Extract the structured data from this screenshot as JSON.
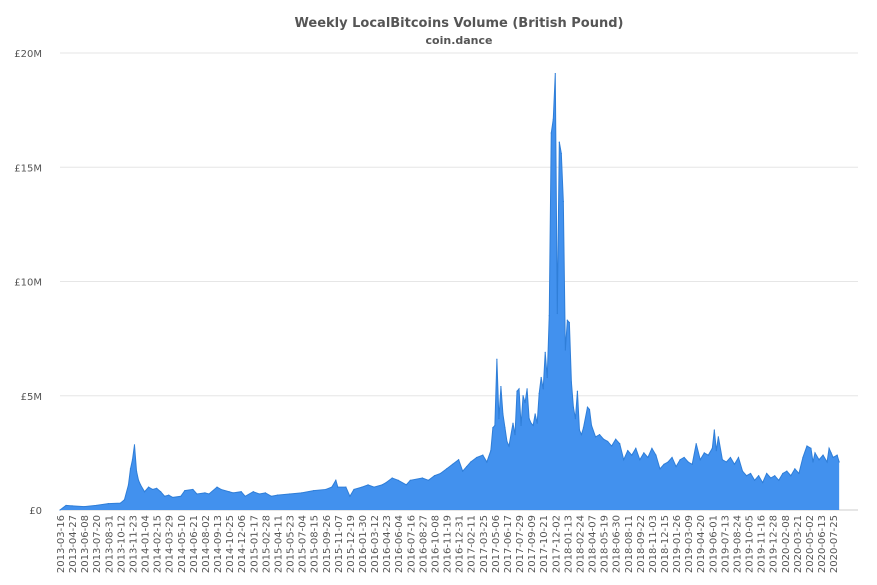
{
  "chart_data": {
    "type": "area",
    "title": "Weekly LocalBitcoins Volume (British Pound)",
    "subtitle": "coin.dance",
    "xlabel": "",
    "ylabel": "",
    "ylim": [
      0,
      20000000
    ],
    "yticks": [
      {
        "value": 0,
        "label": "£0"
      },
      {
        "value": 5000000,
        "label": "£5M"
      },
      {
        "value": 10000000,
        "label": "£10M"
      },
      {
        "value": 15000000,
        "label": "£15M"
      },
      {
        "value": 20000000,
        "label": "£20M"
      }
    ],
    "xticks": [
      "2013-03-16",
      "2013-04-27",
      "2013-06-08",
      "2013-07-20",
      "2013-08-31",
      "2013-10-12",
      "2013-11-23",
      "2014-01-04",
      "2014-02-15",
      "2014-03-29",
      "2014-05-10",
      "2014-06-21",
      "2014-08-02",
      "2014-09-13",
      "2014-10-25",
      "2014-12-06",
      "2015-01-17",
      "2015-02-28",
      "2015-04-11",
      "2015-05-23",
      "2015-07-04",
      "2015-08-15",
      "2015-09-26",
      "2015-11-07",
      "2015-12-19",
      "2016-01-30",
      "2016-03-12",
      "2016-04-23",
      "2016-06-04",
      "2016-07-16",
      "2016-08-27",
      "2016-10-08",
      "2016-11-19",
      "2016-12-31",
      "2017-02-11",
      "2017-03-25",
      "2017-05-06",
      "2017-06-17",
      "2017-07-29",
      "2017-09-09",
      "2017-10-21",
      "2017-12-02",
      "2018-01-13",
      "2018-02-24",
      "2018-04-07",
      "2018-05-19",
      "2018-06-30",
      "2018-08-11",
      "2018-09-22",
      "2018-11-03",
      "2018-12-15",
      "2019-01-26",
      "2019-03-09",
      "2019-04-20",
      "2019-06-01",
      "2019-07-13",
      "2019-08-24",
      "2019-10-05",
      "2019-11-16",
      "2019-12-28",
      "2020-02-08",
      "2020-03-21",
      "2020-05-02",
      "2020-06-13",
      "2020-07-25"
    ],
    "grid": true,
    "color": "#4291ee",
    "line_color": "#2f7ed8",
    "series": [
      {
        "points": [
          [
            "2013-03-16",
            0
          ],
          [
            "2013-04-06",
            200000
          ],
          [
            "2013-04-27",
            180000
          ],
          [
            "2013-06-08",
            150000
          ],
          [
            "2013-07-20",
            200000
          ],
          [
            "2013-08-31",
            280000
          ],
          [
            "2013-10-12",
            300000
          ],
          [
            "2013-10-26",
            450000
          ],
          [
            "2013-11-09",
            1100000
          ],
          [
            "2013-11-16",
            1800000
          ],
          [
            "2013-11-23",
            2200000
          ],
          [
            "2013-11-30",
            2850000
          ],
          [
            "2013-12-07",
            1700000
          ],
          [
            "2013-12-14",
            1300000
          ],
          [
            "2013-12-21",
            1100000
          ],
          [
            "2014-01-04",
            800000
          ],
          [
            "2014-01-18",
            1000000
          ],
          [
            "2014-02-01",
            900000
          ],
          [
            "2014-02-15",
            950000
          ],
          [
            "2014-03-01",
            800000
          ],
          [
            "2014-03-15",
            600000
          ],
          [
            "2014-03-29",
            650000
          ],
          [
            "2014-04-12",
            550000
          ],
          [
            "2014-05-10",
            600000
          ],
          [
            "2014-05-24",
            850000
          ],
          [
            "2014-06-21",
            900000
          ],
          [
            "2014-07-05",
            700000
          ],
          [
            "2014-08-02",
            750000
          ],
          [
            "2014-08-16",
            700000
          ],
          [
            "2014-09-13",
            1000000
          ],
          [
            "2014-09-27",
            900000
          ],
          [
            "2014-10-25",
            800000
          ],
          [
            "2014-11-08",
            750000
          ],
          [
            "2014-12-06",
            800000
          ],
          [
            "2014-12-20",
            600000
          ],
          [
            "2015-01-17",
            800000
          ],
          [
            "2015-02-07",
            700000
          ],
          [
            "2015-02-28",
            750000
          ],
          [
            "2015-03-21",
            600000
          ],
          [
            "2015-04-11",
            650000
          ],
          [
            "2015-05-23",
            700000
          ],
          [
            "2015-07-04",
            750000
          ],
          [
            "2015-08-15",
            850000
          ],
          [
            "2015-09-26",
            900000
          ],
          [
            "2015-10-17",
            1000000
          ],
          [
            "2015-10-31",
            1300000
          ],
          [
            "2015-11-07",
            1000000
          ],
          [
            "2015-12-05",
            1000000
          ],
          [
            "2015-12-19",
            600000
          ],
          [
            "2016-01-02",
            900000
          ],
          [
            "2016-01-30",
            1000000
          ],
          [
            "2016-02-20",
            1100000
          ],
          [
            "2016-03-12",
            1000000
          ],
          [
            "2016-04-09",
            1100000
          ],
          [
            "2016-04-23",
            1200000
          ],
          [
            "2016-05-14",
            1400000
          ],
          [
            "2016-06-04",
            1300000
          ],
          [
            "2016-07-02",
            1100000
          ],
          [
            "2016-07-16",
            1300000
          ],
          [
            "2016-08-27",
            1400000
          ],
          [
            "2016-09-17",
            1300000
          ],
          [
            "2016-10-08",
            1500000
          ],
          [
            "2016-10-29",
            1600000
          ],
          [
            "2016-11-19",
            1800000
          ],
          [
            "2016-12-10",
            2000000
          ],
          [
            "2016-12-31",
            2200000
          ],
          [
            "2017-01-14",
            1700000
          ],
          [
            "2017-01-28",
            1900000
          ],
          [
            "2017-02-11",
            2100000
          ],
          [
            "2017-03-04",
            2300000
          ],
          [
            "2017-03-25",
            2400000
          ],
          [
            "2017-04-08",
            2100000
          ],
          [
            "2017-04-22",
            2600000
          ],
          [
            "2017-04-29",
            3600000
          ],
          [
            "2017-05-06",
            3700000
          ],
          [
            "2017-05-13",
            6600000
          ],
          [
            "2017-05-20",
            4000000
          ],
          [
            "2017-05-27",
            5400000
          ],
          [
            "2017-06-03",
            4200000
          ],
          [
            "2017-06-10",
            3600000
          ],
          [
            "2017-06-17",
            3000000
          ],
          [
            "2017-06-24",
            2800000
          ],
          [
            "2017-07-08",
            3800000
          ],
          [
            "2017-07-15",
            3300000
          ],
          [
            "2017-07-22",
            5200000
          ],
          [
            "2017-07-29",
            5300000
          ],
          [
            "2017-08-05",
            3700000
          ],
          [
            "2017-08-12",
            5000000
          ],
          [
            "2017-08-19",
            4700000
          ],
          [
            "2017-08-26",
            5300000
          ],
          [
            "2017-09-02",
            4000000
          ],
          [
            "2017-09-09",
            3800000
          ],
          [
            "2017-09-16",
            3700000
          ],
          [
            "2017-09-23",
            4200000
          ],
          [
            "2017-09-30",
            3800000
          ],
          [
            "2017-10-07",
            5100000
          ],
          [
            "2017-10-14",
            5800000
          ],
          [
            "2017-10-21",
            5300000
          ],
          [
            "2017-10-28",
            6900000
          ],
          [
            "2017-11-04",
            5800000
          ],
          [
            "2017-11-11",
            8500000
          ],
          [
            "2017-11-18",
            16500000
          ],
          [
            "2017-11-25",
            17100000
          ],
          [
            "2017-12-02",
            19100000
          ],
          [
            "2017-12-09",
            8600000
          ],
          [
            "2017-12-16",
            16100000
          ],
          [
            "2017-12-23",
            15600000
          ],
          [
            "2017-12-30",
            13500000
          ],
          [
            "2018-01-06",
            7000000
          ],
          [
            "2018-01-13",
            8300000
          ],
          [
            "2018-01-20",
            8200000
          ],
          [
            "2018-01-27",
            5600000
          ],
          [
            "2018-02-03",
            4500000
          ],
          [
            "2018-02-10",
            4000000
          ],
          [
            "2018-02-17",
            5200000
          ],
          [
            "2018-02-24",
            3500000
          ],
          [
            "2018-03-03",
            3300000
          ],
          [
            "2018-03-10",
            3600000
          ],
          [
            "2018-03-24",
            4500000
          ],
          [
            "2018-03-31",
            4400000
          ],
          [
            "2018-04-07",
            3700000
          ],
          [
            "2018-04-21",
            3200000
          ],
          [
            "2018-05-05",
            3300000
          ],
          [
            "2018-05-19",
            3100000
          ],
          [
            "2018-06-02",
            3000000
          ],
          [
            "2018-06-16",
            2800000
          ],
          [
            "2018-06-30",
            3100000
          ],
          [
            "2018-07-14",
            2900000
          ],
          [
            "2018-07-28",
            2200000
          ],
          [
            "2018-08-11",
            2600000
          ],
          [
            "2018-08-25",
            2400000
          ],
          [
            "2018-09-08",
            2700000
          ],
          [
            "2018-09-22",
            2200000
          ],
          [
            "2018-10-06",
            2500000
          ],
          [
            "2018-10-20",
            2300000
          ],
          [
            "2018-11-03",
            2700000
          ],
          [
            "2018-11-17",
            2400000
          ],
          [
            "2018-12-01",
            1800000
          ],
          [
            "2018-12-15",
            2000000
          ],
          [
            "2018-12-29",
            2100000
          ],
          [
            "2019-01-12",
            2300000
          ],
          [
            "2019-01-26",
            1900000
          ],
          [
            "2019-02-09",
            2200000
          ],
          [
            "2019-02-23",
            2300000
          ],
          [
            "2019-03-09",
            2100000
          ],
          [
            "2019-03-23",
            2000000
          ],
          [
            "2019-04-06",
            2900000
          ],
          [
            "2019-04-20",
            2200000
          ],
          [
            "2019-05-04",
            2500000
          ],
          [
            "2019-05-18",
            2400000
          ],
          [
            "2019-06-01",
            2700000
          ],
          [
            "2019-06-08",
            3500000
          ],
          [
            "2019-06-15",
            2600000
          ],
          [
            "2019-06-22",
            3200000
          ],
          [
            "2019-07-06",
            2200000
          ],
          [
            "2019-07-20",
            2100000
          ],
          [
            "2019-08-03",
            2300000
          ],
          [
            "2019-08-17",
            2000000
          ],
          [
            "2019-08-31",
            2300000
          ],
          [
            "2019-09-14",
            1700000
          ],
          [
            "2019-09-28",
            1500000
          ],
          [
            "2019-10-12",
            1600000
          ],
          [
            "2019-10-26",
            1300000
          ],
          [
            "2019-11-09",
            1500000
          ],
          [
            "2019-11-23",
            1200000
          ],
          [
            "2019-12-07",
            1600000
          ],
          [
            "2019-12-21",
            1400000
          ],
          [
            "2020-01-04",
            1500000
          ],
          [
            "2020-01-18",
            1300000
          ],
          [
            "2020-02-01",
            1600000
          ],
          [
            "2020-02-15",
            1700000
          ],
          [
            "2020-02-29",
            1500000
          ],
          [
            "2020-03-14",
            1800000
          ],
          [
            "2020-03-28",
            1600000
          ],
          [
            "2020-04-11",
            2300000
          ],
          [
            "2020-04-25",
            2800000
          ],
          [
            "2020-05-09",
            2700000
          ],
          [
            "2020-05-16",
            2100000
          ],
          [
            "2020-05-23",
            2500000
          ],
          [
            "2020-06-06",
            2200000
          ],
          [
            "2020-06-20",
            2400000
          ],
          [
            "2020-07-04",
            2100000
          ],
          [
            "2020-07-11",
            2700000
          ],
          [
            "2020-07-18",
            2500000
          ],
          [
            "2020-07-25",
            2300000
          ],
          [
            "2020-08-08",
            2400000
          ],
          [
            "2020-08-15",
            2100000
          ]
        ]
      }
    ]
  }
}
